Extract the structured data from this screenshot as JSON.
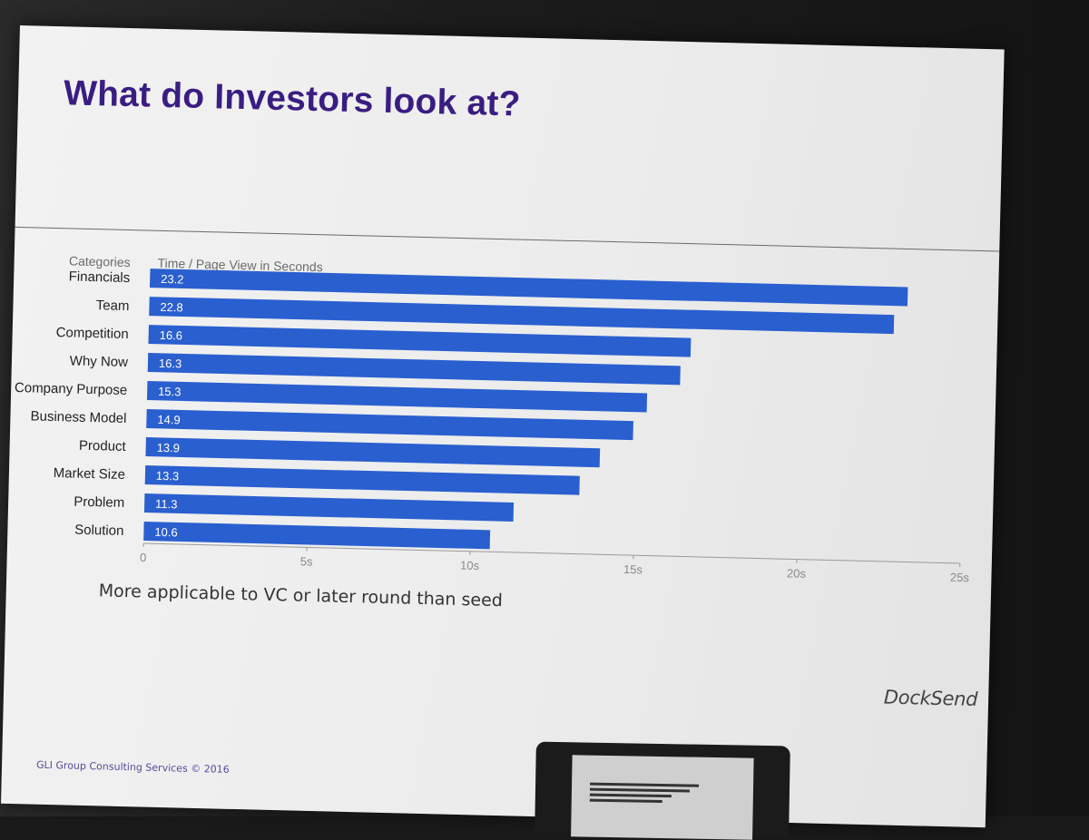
{
  "slide": {
    "title": "What do Investors look at?",
    "note": "More applicable to VC or later round than seed",
    "brand": "DockSend",
    "footer": "GLI Group Consulting Services © 2016"
  },
  "colors": {
    "title": "#3a1d82",
    "bar": "#2a5fcf"
  },
  "chart_data": {
    "type": "bar",
    "orientation": "horizontal",
    "category_header": "Categories",
    "value_header": "Time / Page View in Seconds",
    "categories": [
      "Financials",
      "Team",
      "Competition",
      "Why Now",
      "Company Purpose",
      "Business Model",
      "Product",
      "Market Size",
      "Problem",
      "Solution"
    ],
    "values": [
      23.2,
      22.8,
      16.6,
      16.3,
      15.3,
      14.9,
      13.9,
      13.3,
      11.3,
      10.6
    ],
    "xlim": [
      0,
      25
    ],
    "ticks": [
      0,
      5,
      10,
      15,
      20,
      25
    ],
    "tick_labels": [
      "0",
      "5s",
      "10s",
      "15s",
      "20s",
      "25s"
    ],
    "grid": false,
    "legend": "none"
  }
}
